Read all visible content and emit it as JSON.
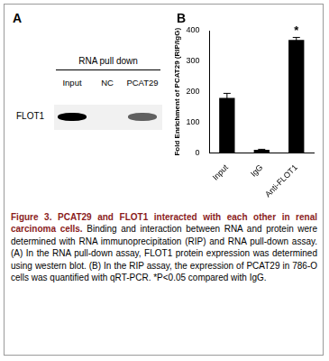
{
  "panel_a": {
    "label": "A",
    "title": "RNA pull down",
    "lanes": [
      "Input",
      "NC",
      "PCAT29"
    ],
    "protein": "FLOT1",
    "band_signal": [
      1.0,
      0.0,
      0.6
    ]
  },
  "chart_data": {
    "panel_label": "B",
    "type": "bar",
    "categories": [
      "Input",
      "IgG",
      "Anti-FLOT1"
    ],
    "values": [
      180,
      10,
      370
    ],
    "errors": [
      15,
      2,
      8
    ],
    "color": "#000000",
    "ylabel": "Fold Enrichment of PCAT29 (RIP/IgG)",
    "ylim": [
      0,
      400
    ],
    "yticks": [
      0,
      100,
      200,
      300,
      400
    ],
    "grid": false,
    "annotations": [
      {
        "category": "Anti-FLOT1",
        "text": "*"
      }
    ]
  },
  "caption": {
    "title": "Figure 3. PCAT29 and FLOT1 interacted with each other in renal carcinoma cells.",
    "text": "Binding and interaction between RNA and protein were determined with RNA immunoprecipitation (RIP) and RNA pull-down assay. (A) In the RNA pull-down assay, FLOT1 protein expression was determined using western blot. (B) In the RIP assay, the expression of PCAT29 in 786-O cells was quantified with qRT-PCR. *P<0.05 compared with IgG."
  }
}
